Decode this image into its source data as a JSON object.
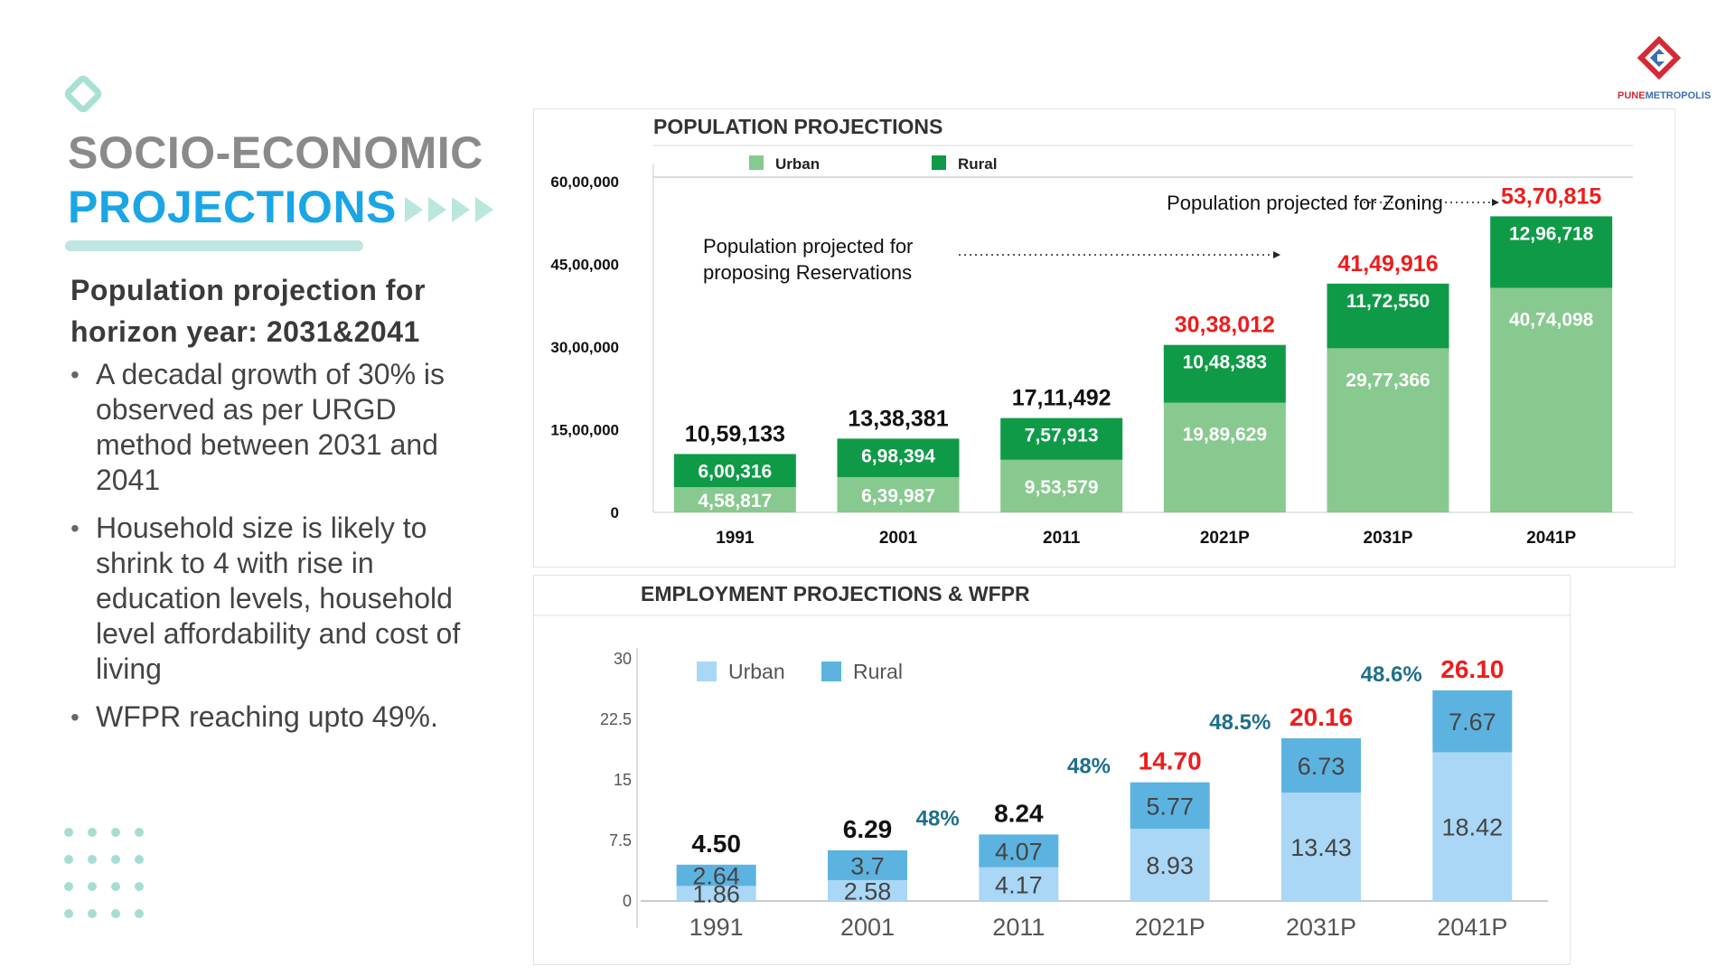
{
  "header": {
    "title_line1": "SOCIO-ECONOMIC",
    "title_line2": "PROJECTIONS",
    "logo_text_pune": "PUNE",
    "logo_text_metro": "METROPOLIS"
  },
  "left": {
    "subheading": "Population projection for horizon year: 2031&2041",
    "bullets": [
      "A decadal growth of 30% is observed as per URGD method between 2031 and 2041",
      "Household size is likely to shrink to 4 with rise in education levels, household level affordability and cost of living",
      "WFPR reaching upto 49%."
    ]
  },
  "colors": {
    "title_grey": "#8a8a8a",
    "title_blue": "#1aa6e6",
    "accent_mint": "#7fd3c4",
    "pop_urban": "#88c98f",
    "pop_rural": "#0f9a48",
    "emp_urban": "#aad7f5",
    "emp_rural": "#5db3e0",
    "highlight_red": "#ee1c1c",
    "wfpr_teal": "#1f6f8b"
  },
  "chart_data": [
    {
      "type": "bar",
      "stacked": true,
      "title": "POPULATION PROJECTIONS",
      "categories": [
        "1991",
        "2001",
        "2011",
        "2021P",
        "2031P",
        "2041P"
      ],
      "series": [
        {
          "name": "Urban",
          "values": [
            458817,
            639987,
            953579,
            1989629,
            2977366,
            4074098
          ],
          "labels": [
            "4,58,817",
            "6,39,987",
            "9,53,579",
            "19,89,629",
            "29,77,366",
            "40,74,098"
          ]
        },
        {
          "name": "Rural",
          "values": [
            600316,
            698394,
            757913,
            1048383,
            1172550,
            1296718
          ],
          "labels": [
            "6,00,316",
            "6,98,394",
            "7,57,913",
            "10,48,383",
            "11,72,550",
            "12,96,718"
          ]
        }
      ],
      "totals": [
        "10,59,133",
        "13,38,381",
        "17,11,492",
        "30,38,012",
        "41,49,916",
        "53,70,815"
      ],
      "total_highlight": [
        false,
        false,
        false,
        true,
        true,
        true
      ],
      "ylim": [
        0,
        6000000
      ],
      "yticks": [
        0,
        1500000,
        3000000,
        4500000,
        6000000
      ],
      "ytick_labels": [
        "0",
        "15,00,000",
        "30,00,000",
        "45,00,000",
        "60,00,000"
      ],
      "legend_position": "top-left",
      "grid": false,
      "annotations": [
        {
          "text": "Population projected for Zoning"
        },
        {
          "text": "Population projected for proposing Reservations"
        }
      ]
    },
    {
      "type": "bar",
      "stacked": true,
      "title": "EMPLOYMENT PROJECTIONS & WFPR",
      "categories": [
        "1991",
        "2001",
        "2011",
        "2021P",
        "2031P",
        "2041P"
      ],
      "series": [
        {
          "name": "Urban",
          "values": [
            1.86,
            2.58,
            4.17,
            8.93,
            13.43,
            18.42
          ],
          "labels": [
            "1.86",
            "2.58",
            "4.17",
            "8.93",
            "13.43",
            "18.42"
          ]
        },
        {
          "name": "Rural",
          "values": [
            2.64,
            3.7,
            4.07,
            5.77,
            6.73,
            7.67
          ],
          "labels": [
            "2.64",
            "3.7",
            "4.07",
            "5.77",
            "6.73",
            "7.67"
          ]
        }
      ],
      "totals": [
        "4.50",
        "6.29",
        "8.24",
        "14.70",
        "20.16",
        "26.10"
      ],
      "total_highlight": [
        false,
        false,
        false,
        true,
        true,
        true
      ],
      "wfpr": [
        "48%",
        "48%",
        "48.5%",
        "48.6%"
      ],
      "ylim": [
        0,
        30
      ],
      "yticks": [
        0,
        7.5,
        15,
        22.5,
        30
      ],
      "ytick_labels": [
        "0",
        "7.5",
        "15",
        "22.5",
        "30"
      ],
      "legend_position": "top-left",
      "grid": false
    }
  ]
}
